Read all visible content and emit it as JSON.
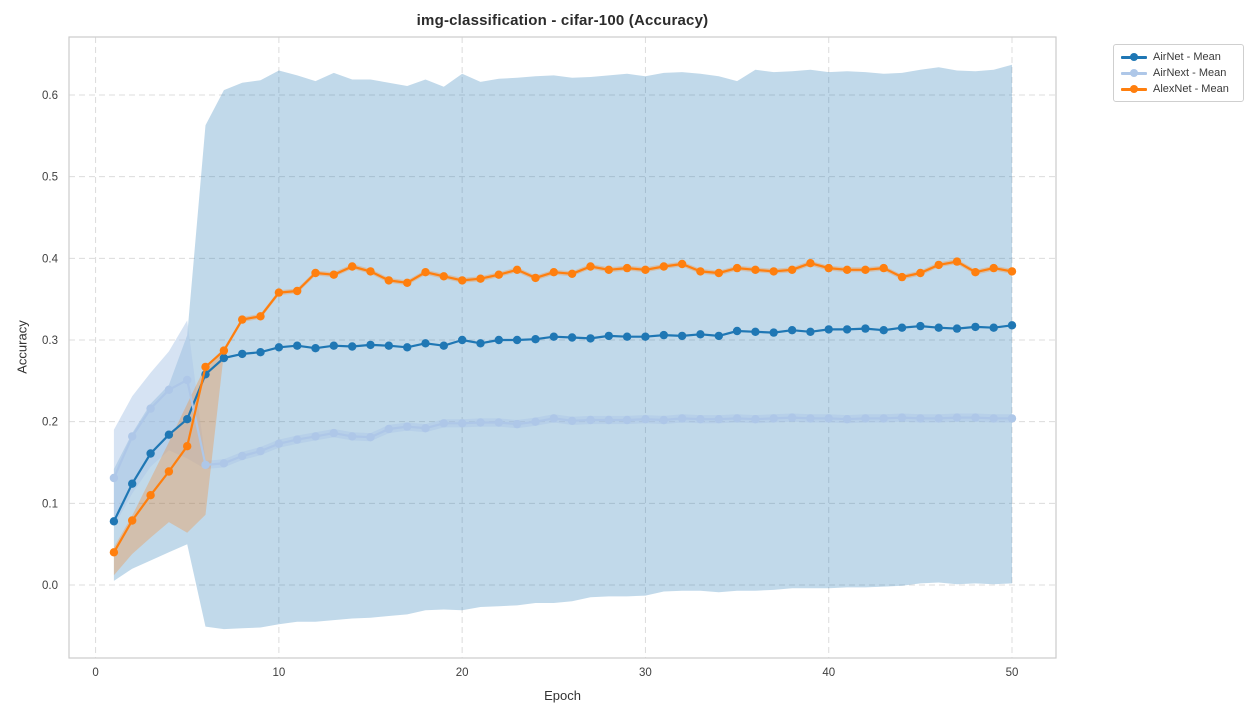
{
  "chart_data": {
    "type": "line",
    "title": "img-classification - cifar-100 (Accuracy)",
    "xlabel": "Epoch",
    "ylabel": "Accuracy",
    "grid": true,
    "legend_position": "upper right outside",
    "xlim": [
      -1.45,
      52.4
    ],
    "ylim": [
      -0.0894,
      0.671
    ],
    "x_ticks": [
      0,
      10,
      20,
      30,
      40,
      50
    ],
    "x_tick_labels": [
      "0",
      "10",
      "20",
      "30",
      "40",
      "50"
    ],
    "y_ticks": [
      0.0,
      0.1,
      0.2,
      0.3,
      0.4,
      0.5,
      0.6
    ],
    "y_tick_labels": [
      "0.0",
      "0.1",
      "0.2",
      "0.3",
      "0.4",
      "0.5",
      "0.6"
    ],
    "x": [
      1,
      2,
      3,
      4,
      5,
      6,
      7,
      8,
      9,
      10,
      11,
      12,
      13,
      14,
      15,
      16,
      17,
      18,
      19,
      20,
      21,
      22,
      23,
      24,
      25,
      26,
      27,
      28,
      29,
      30,
      31,
      32,
      33,
      34,
      35,
      36,
      37,
      38,
      39,
      40,
      41,
      42,
      43,
      44,
      45,
      46,
      47,
      48,
      49,
      50
    ],
    "series": [
      {
        "name": "AirNet - Mean",
        "color": "#1f77b4",
        "band_color": "rgba(31,119,180,0.28)",
        "mean": [
          0.078,
          0.124,
          0.161,
          0.184,
          0.203,
          0.258,
          0.278,
          0.283,
          0.285,
          0.291,
          0.293,
          0.29,
          0.293,
          0.292,
          0.294,
          0.293,
          0.291,
          0.296,
          0.293,
          0.3,
          0.296,
          0.3,
          0.3,
          0.301,
          0.304,
          0.303,
          0.302,
          0.305,
          0.304,
          0.304,
          0.306,
          0.305,
          0.307,
          0.305,
          0.311,
          0.31,
          0.309,
          0.312,
          0.31,
          0.313,
          0.313,
          0.314,
          0.312,
          0.315,
          0.317,
          0.315,
          0.314,
          0.316,
          0.315,
          0.318
        ],
        "upper": [
          0.142,
          0.186,
          0.222,
          0.245,
          0.306,
          0.563,
          0.606,
          0.615,
          0.618,
          0.63,
          0.624,
          0.617,
          0.627,
          0.619,
          0.619,
          0.615,
          0.611,
          0.619,
          0.61,
          0.626,
          0.616,
          0.62,
          0.621,
          0.623,
          0.624,
          0.621,
          0.622,
          0.624,
          0.626,
          0.623,
          0.627,
          0.628,
          0.626,
          0.623,
          0.617,
          0.631,
          0.628,
          0.629,
          0.631,
          0.628,
          0.629,
          0.628,
          0.626,
          0.627,
          0.631,
          0.634,
          0.63,
          0.629,
          0.631,
          0.637
        ],
        "lower": [
          0.005,
          0.02,
          0.03,
          0.04,
          0.05,
          -0.051,
          -0.054,
          -0.053,
          -0.052,
          -0.048,
          -0.045,
          -0.045,
          -0.043,
          -0.041,
          -0.04,
          -0.038,
          -0.036,
          -0.031,
          -0.03,
          -0.031,
          -0.027,
          -0.026,
          -0.025,
          -0.022,
          -0.022,
          -0.02,
          -0.015,
          -0.014,
          -0.014,
          -0.013,
          -0.008,
          -0.007,
          -0.007,
          -0.009,
          -0.007,
          -0.007,
          -0.006,
          -0.004,
          -0.004,
          -0.004,
          -0.003,
          -0.003,
          -0.002,
          -0.001,
          0.002,
          0.003,
          0.001,
          0.002,
          0.001,
          0.002
        ]
      },
      {
        "name": "AirNext - Mean",
        "color": "#aec7e8",
        "band_color": "rgba(174,199,232,0.5)",
        "mean": [
          0.131,
          0.182,
          0.216,
          0.239,
          0.251,
          0.147,
          0.149,
          0.158,
          0.164,
          0.173,
          0.178,
          0.182,
          0.186,
          0.182,
          0.181,
          0.191,
          0.194,
          0.192,
          0.198,
          0.198,
          0.199,
          0.199,
          0.197,
          0.2,
          0.204,
          0.201,
          0.202,
          0.202,
          0.202,
          0.203,
          0.202,
          0.204,
          0.203,
          0.203,
          0.204,
          0.203,
          0.204,
          0.205,
          0.204,
          0.204,
          0.203,
          0.204,
          0.204,
          0.205,
          0.204,
          0.204,
          0.205,
          0.205,
          0.204,
          0.204
        ],
        "upper": [
          0.19,
          0.231,
          0.26,
          0.286,
          0.324,
          0.152,
          0.154,
          0.163,
          0.169,
          0.178,
          0.183,
          0.187,
          0.191,
          0.187,
          0.186,
          0.196,
          0.199,
          0.197,
          0.203,
          0.203,
          0.204,
          0.204,
          0.202,
          0.205,
          0.209,
          0.206,
          0.207,
          0.207,
          0.207,
          0.208,
          0.207,
          0.209,
          0.208,
          0.208,
          0.209,
          0.208,
          0.209,
          0.21,
          0.209,
          0.209,
          0.208,
          0.209,
          0.209,
          0.21,
          0.209,
          0.209,
          0.21,
          0.21,
          0.209,
          0.209
        ],
        "lower": [
          0.072,
          0.112,
          0.145,
          0.165,
          0.155,
          0.142,
          0.144,
          0.153,
          0.159,
          0.168,
          0.173,
          0.177,
          0.181,
          0.177,
          0.176,
          0.186,
          0.189,
          0.187,
          0.193,
          0.193,
          0.194,
          0.194,
          0.192,
          0.195,
          0.199,
          0.196,
          0.197,
          0.197,
          0.197,
          0.198,
          0.197,
          0.199,
          0.198,
          0.198,
          0.199,
          0.198,
          0.199,
          0.2,
          0.199,
          0.199,
          0.198,
          0.199,
          0.199,
          0.2,
          0.199,
          0.199,
          0.2,
          0.2,
          0.199,
          0.199
        ]
      },
      {
        "name": "AlexNet - Mean",
        "color": "#ff7f0e",
        "band_color": "rgba(255,127,14,0.28)",
        "mean": [
          0.04,
          0.079,
          0.11,
          0.139,
          0.17,
          0.267,
          0.287,
          0.325,
          0.329,
          0.358,
          0.36,
          0.382,
          0.38,
          0.39,
          0.384,
          0.373,
          0.37,
          0.383,
          0.378,
          0.373,
          0.375,
          0.38,
          0.386,
          0.376,
          0.383,
          0.381,
          0.39,
          0.386,
          0.388,
          0.386,
          0.39,
          0.393,
          0.384,
          0.382,
          0.388,
          0.386,
          0.384,
          0.386,
          0.394,
          0.388,
          0.386,
          0.386,
          0.388,
          0.377,
          0.382,
          0.392,
          0.396,
          0.383,
          0.388,
          0.384
        ],
        "upper": [
          0.046,
          0.085,
          0.13,
          0.175,
          0.222,
          0.268,
          0.29,
          0.328,
          0.332,
          0.361,
          0.363,
          0.385,
          0.383,
          0.393,
          0.387,
          0.376,
          0.373,
          0.386,
          0.381,
          0.376,
          0.378,
          0.383,
          0.389,
          0.379,
          0.386,
          0.384,
          0.393,
          0.389,
          0.391,
          0.389,
          0.393,
          0.396,
          0.387,
          0.385,
          0.391,
          0.389,
          0.387,
          0.389,
          0.397,
          0.391,
          0.389,
          0.389,
          0.391,
          0.38,
          0.385,
          0.395,
          0.399,
          0.386,
          0.391,
          0.387
        ],
        "lower": [
          0.012,
          0.038,
          0.058,
          0.077,
          0.064,
          0.086,
          0.284,
          0.322,
          0.326,
          0.355,
          0.357,
          0.379,
          0.377,
          0.387,
          0.381,
          0.37,
          0.367,
          0.38,
          0.375,
          0.37,
          0.372,
          0.377,
          0.383,
          0.373,
          0.38,
          0.378,
          0.387,
          0.383,
          0.385,
          0.383,
          0.387,
          0.39,
          0.381,
          0.379,
          0.385,
          0.383,
          0.381,
          0.383,
          0.391,
          0.385,
          0.383,
          0.383,
          0.385,
          0.374,
          0.379,
          0.389,
          0.393,
          0.38,
          0.385,
          0.381
        ]
      }
    ],
    "style": {
      "grid_color": "#dcdcdc",
      "spine_color": "#cccccc",
      "tick_label_color": "#404040",
      "title_color": "#2b2b2b"
    }
  }
}
